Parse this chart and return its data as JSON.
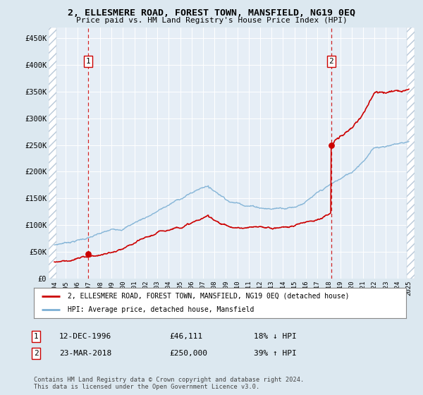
{
  "title": "2, ELLESMERE ROAD, FOREST TOWN, MANSFIELD, NG19 0EQ",
  "subtitle": "Price paid vs. HM Land Registry's House Price Index (HPI)",
  "sale1_date": 1996.95,
  "sale1_price": 46111,
  "sale1_label": "1",
  "sale1_text": "12-DEC-1996",
  "sale1_price_str": "£46,111",
  "sale1_hpi": "18% ↓ HPI",
  "sale2_date": 2018.22,
  "sale2_price": 250000,
  "sale2_label": "2",
  "sale2_text": "23-MAR-2018",
  "sale2_price_str": "£250,000",
  "sale2_hpi": "39% ↑ HPI",
  "property_color": "#cc0000",
  "hpi_color": "#7bafd4",
  "legend_property": "2, ELLESMERE ROAD, FOREST TOWN, MANSFIELD, NG19 0EQ (detached house)",
  "legend_hpi": "HPI: Average price, detached house, Mansfield",
  "footnote": "Contains HM Land Registry data © Crown copyright and database right 2024.\nThis data is licensed under the Open Government Licence v3.0.",
  "xmin": 1993.5,
  "xmax": 2025.5,
  "ymin": 0,
  "ymax": 470000,
  "yticks": [
    0,
    50000,
    100000,
    150000,
    200000,
    250000,
    300000,
    350000,
    400000,
    450000
  ],
  "ytick_labels": [
    "£0",
    "£50K",
    "£100K",
    "£150K",
    "£200K",
    "£250K",
    "£300K",
    "£350K",
    "£400K",
    "£450K"
  ],
  "xticks": [
    1994,
    1995,
    1996,
    1997,
    1998,
    1999,
    2000,
    2001,
    2002,
    2003,
    2004,
    2005,
    2006,
    2007,
    2008,
    2009,
    2010,
    2011,
    2012,
    2013,
    2014,
    2015,
    2016,
    2017,
    2018,
    2019,
    2020,
    2021,
    2022,
    2023,
    2024,
    2025
  ],
  "bg_color": "#dce8f0",
  "plot_bg": "#e6eef6",
  "hatch_color": "#b8c8d8",
  "grid_color": "#ffffff"
}
